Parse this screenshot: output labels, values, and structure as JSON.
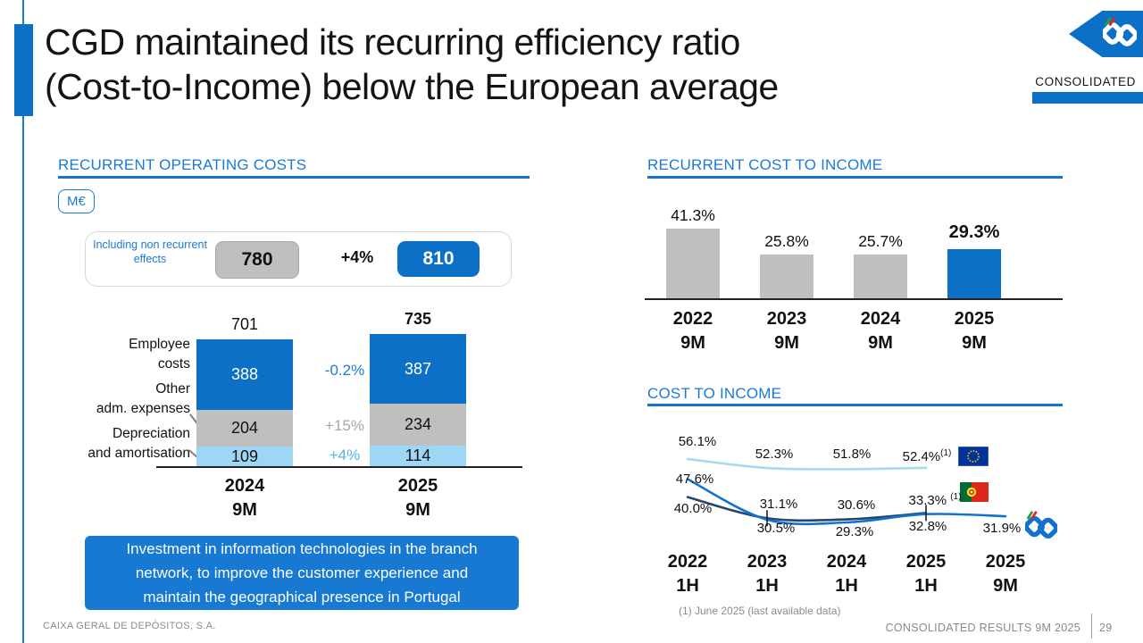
{
  "header": {
    "title_lines": [
      "CGD maintained its recurring efficiency ratio",
      "(Cost-to-Income) below the European average"
    ],
    "badge": "CONSOLIDATED"
  },
  "left_panel": {
    "note": "Investment in information technologies in the branch network, to improve the customer experience and maintain the geographical presence in Portugal"
  },
  "footer": {
    "company": "CAIXA GERAL DE DEPÓSITOS, S.A.",
    "report": "CONSOLIDATED RESULTS 9M 2025",
    "page": "29",
    "footnote": "(1) June 2025  (last available data)"
  },
  "colors": {
    "cgd_blue": "#0b70c6",
    "accent_blue": "#1779d2",
    "gray_bar": "#bfbfbf",
    "light_blue_bar": "#9ed7f5",
    "navy_line": "#24466b",
    "eu_line": "#a5d8f2",
    "cgd_line": "#1272ce"
  },
  "chart_data": [
    {
      "id": "operating-costs",
      "type": "bar",
      "stacked": true,
      "title": "RECURRENT OPERATING COSTS",
      "unit": "M€",
      "categories": [
        "2024 9M",
        "2025 9M"
      ],
      "totals": [
        "701",
        "735"
      ],
      "series": [
        {
          "name": "Employee costs",
          "label_lines": [
            "Employee",
            "costs"
          ],
          "values": [
            388,
            387
          ],
          "color": "#0b70c6",
          "change": "-0.2%",
          "change_color": "#1a7ad4"
        },
        {
          "name": "Other adm. expenses",
          "label_lines": [
            "Other",
            "adm. expenses"
          ],
          "values": [
            204,
            234
          ],
          "color": "#bfbfbf",
          "change": "+15%",
          "change_color": "#a6a6a6"
        },
        {
          "name": "Depreciation and amortisation",
          "label_lines": [
            "Depreciation",
            "and amortisation"
          ],
          "values": [
            109,
            114
          ],
          "color": "#9ed7f5",
          "change": "+4%",
          "change_color": "#4fb3ea"
        }
      ],
      "including_non_recurrent": {
        "label": "Including non recurrent effects",
        "values": [
          "780",
          "810"
        ],
        "change": "+4%"
      }
    },
    {
      "id": "recurrent-cost-to-income",
      "type": "bar",
      "title": "RECURRENT COST TO INCOME",
      "categories": [
        "2022 9M",
        "2023 9M",
        "2024 9M",
        "2025 9M"
      ],
      "values": [
        41.3,
        25.8,
        25.7,
        29.3
      ],
      "labels": [
        "41.3%",
        "25.8%",
        "25.7%",
        "29.3%"
      ],
      "bar_color": "#bfbfbf",
      "highlight_color": "#0b70c6",
      "highlight_index": 3,
      "ylim": [
        0,
        45
      ]
    },
    {
      "id": "cost-to-income",
      "type": "line",
      "title": "COST TO INCOME",
      "categories": [
        "2022 1H",
        "2023 1H",
        "2024 1H",
        "2025 1H",
        "2025 9M"
      ],
      "series": [
        {
          "name": "European Union",
          "marker": "eu-flag",
          "color": "#a5d8f2",
          "values": [
            56.1,
            52.3,
            51.8,
            52.4
          ],
          "labels": [
            "56.1%",
            "52.3%",
            "51.8%",
            "52.4%(1)"
          ]
        },
        {
          "name": "Portugal",
          "marker": "portugal-flag",
          "color": "#24466b",
          "values": [
            40.0,
            31.1,
            30.6,
            33.3
          ],
          "labels": [
            "40.0%",
            "31.1%",
            "30.6%",
            "33.3% (1)"
          ]
        },
        {
          "name": "CGD",
          "marker": "cgd-logo",
          "color": "#1272ce",
          "values": [
            47.6,
            30.5,
            29.3,
            32.8,
            31.9
          ],
          "labels": [
            "47.6%",
            "30.5%",
            "29.3%",
            "32.8%",
            "31.9%"
          ]
        }
      ],
      "ylim": [
        25,
        60
      ]
    }
  ]
}
